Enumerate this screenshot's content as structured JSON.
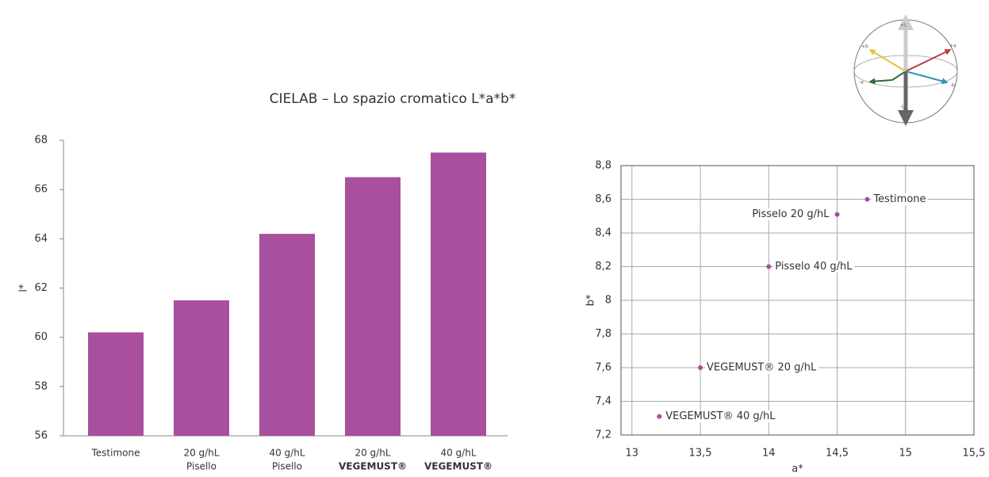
{
  "title": "CIELAB – Lo spazio cromatico L*a*b*",
  "sphere": {
    "labels": [
      "+L",
      "-L",
      "+a",
      "-a",
      "+b",
      "-b"
    ]
  },
  "chart_data": [
    {
      "type": "bar",
      "ylabel": "l*",
      "color": "#a84f9e",
      "categories": [
        [
          "Testimone"
        ],
        [
          "20 g/hL",
          "Pisello"
        ],
        [
          "40 g/hL",
          "Pisello"
        ],
        [
          "20 g/hL",
          "VEGEMUST®"
        ],
        [
          "40 g/hL",
          "VEGEMUST®"
        ]
      ],
      "values": [
        60.2,
        61.5,
        64.2,
        66.5,
        67.5
      ],
      "ylim": [
        56,
        68
      ],
      "yticks": [
        56,
        58,
        60,
        62,
        64,
        66,
        68
      ],
      "grid": false
    },
    {
      "type": "scatter",
      "xlabel": "a*",
      "ylabel": "b*",
      "color": "#a84f9e",
      "labels": [
        "Testimone",
        "Pisselo 20 g/hL",
        "Pisselo 40 g/hL",
        "VEGEMUST® 20 g/hL",
        "VEGEMUST® 40 g/hL"
      ],
      "x": [
        14.72,
        14.5,
        14.0,
        13.5,
        13.2
      ],
      "values": [
        8.6,
        8.51,
        8.2,
        7.6,
        7.31
      ],
      "xlim": [
        12.92,
        15.5
      ],
      "xticks": [
        13,
        {
          "value": 13.5,
          "label": "13,5"
        },
        14,
        {
          "value": 14.5,
          "label": "14,5"
        },
        15,
        {
          "value": 15.5,
          "label": "15,5"
        }
      ],
      "ylim": [
        7.2,
        8.8
      ],
      "yticks": [
        {
          "value": 7.2,
          "label": "7,2"
        },
        {
          "value": 7.4,
          "label": "7,4"
        },
        {
          "value": 7.6,
          "label": "7,6"
        },
        {
          "value": 7.8,
          "label": "7,8"
        },
        8,
        {
          "value": 8.2,
          "label": "8,2"
        },
        {
          "value": 8.4,
          "label": "8,4"
        },
        {
          "value": 8.6,
          "label": "8,6"
        },
        {
          "value": 8.8,
          "label": "8,8"
        }
      ],
      "grid": true
    }
  ]
}
